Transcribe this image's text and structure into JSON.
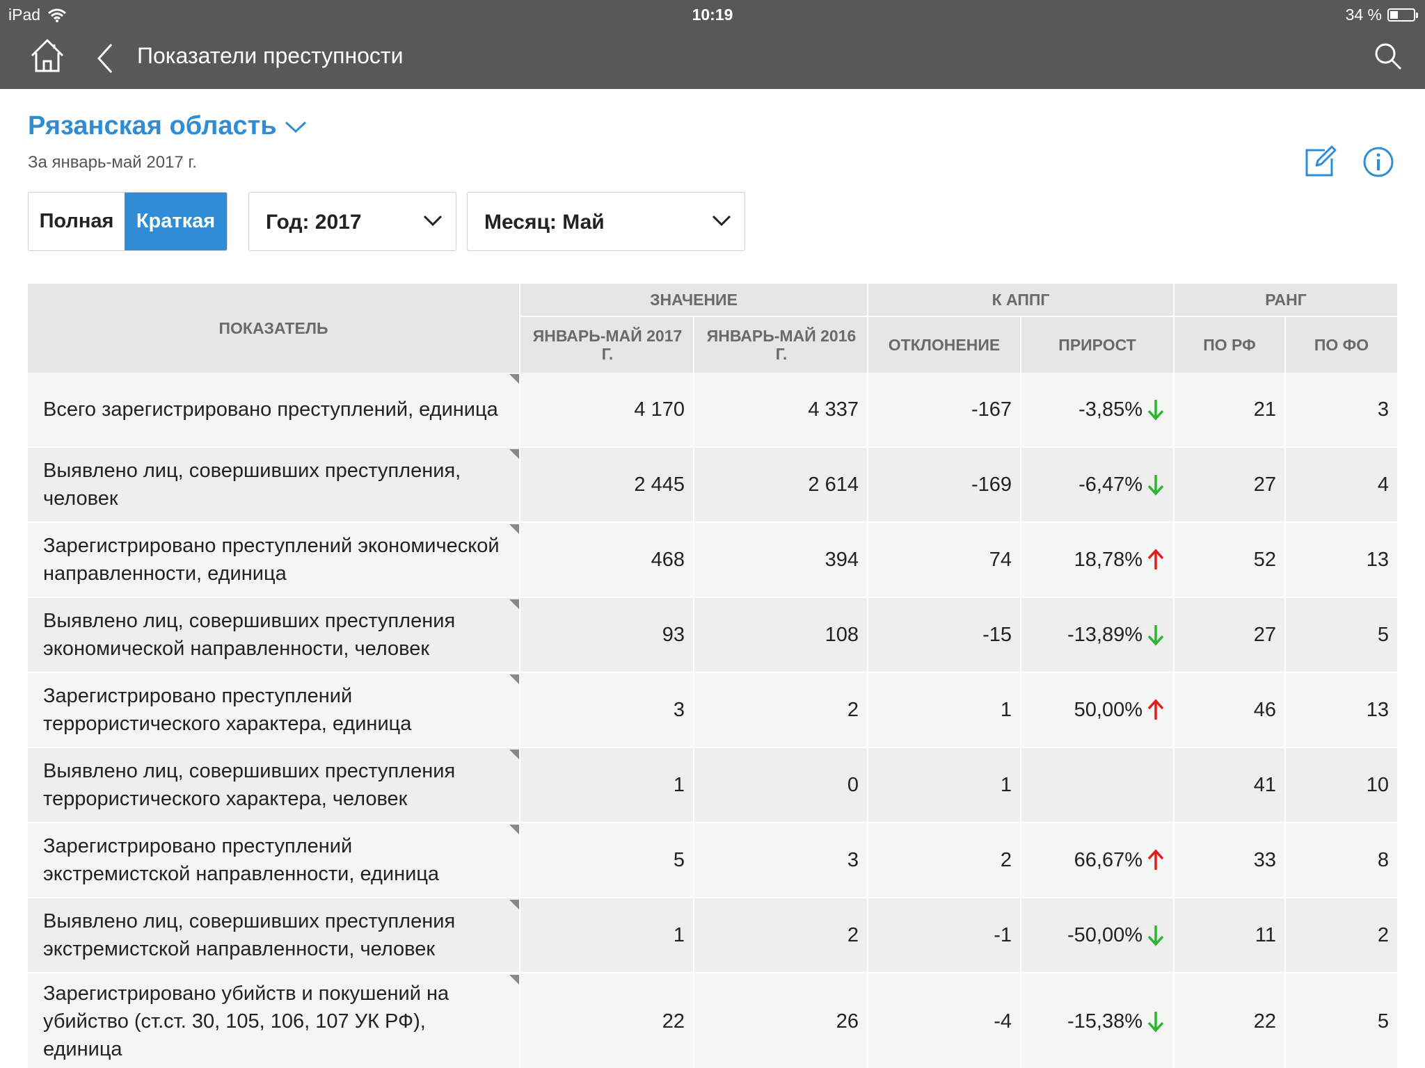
{
  "status": {
    "device": "iPad",
    "time": "10:19",
    "battery": "34 %",
    "battery_level": 0.34
  },
  "nav": {
    "title": "Показатели преступности"
  },
  "region": {
    "name": "Рязанская область",
    "period": "За январь-май 2017 г."
  },
  "view_toggle": {
    "full": "Полная",
    "short": "Краткая",
    "active": "short"
  },
  "filters": {
    "year": "Год: 2017",
    "month": "Месяц: Май"
  },
  "colors": {
    "accent": "#2e8dd6",
    "down": "#2db52d",
    "up": "#e0201b",
    "topbar": "#585858"
  },
  "table": {
    "headers": {
      "indicator": "ПОКАЗАТЕЛЬ",
      "value": "ЗНАЧЕНИЕ",
      "vs_last_year": "К АППГ",
      "rank": "РАНГ",
      "jan_may_2017": "ЯНВАРЬ-МАЙ 2017 Г.",
      "jan_may_2016": "ЯНВАРЬ-МАЙ 2016 Г.",
      "deviation": "ОТКЛОНЕНИЕ",
      "growth": "ПРИРОСТ",
      "rank_rf": "ПО РФ",
      "rank_fo": "ПО ФО"
    },
    "rows": [
      {
        "name": "Всего зарегистрировано преступлений, единица",
        "v2017": "4 170",
        "v2016": "4 337",
        "dev": "-167",
        "growth": "-3,85%",
        "trend": "down",
        "rank_rf": "21",
        "rank_fo": "3"
      },
      {
        "name": "Выявлено лиц, совершивших преступления, человек",
        "v2017": "2 445",
        "v2016": "2 614",
        "dev": "-169",
        "growth": "-6,47%",
        "trend": "down",
        "rank_rf": "27",
        "rank_fo": "4"
      },
      {
        "name": "Зарегистрировано преступлений экономической направленности, единица",
        "v2017": "468",
        "v2016": "394",
        "dev": "74",
        "growth": "18,78%",
        "trend": "up",
        "rank_rf": "52",
        "rank_fo": "13"
      },
      {
        "name": "Выявлено лиц, совершивших преступления экономической направленности, человек",
        "v2017": "93",
        "v2016": "108",
        "dev": "-15",
        "growth": "-13,89%",
        "trend": "down",
        "rank_rf": "27",
        "rank_fo": "5"
      },
      {
        "name": "Зарегистрировано преступлений террористического характера, единица",
        "v2017": "3",
        "v2016": "2",
        "dev": "1",
        "growth": "50,00%",
        "trend": "up",
        "rank_rf": "46",
        "rank_fo": "13"
      },
      {
        "name": "Выявлено лиц, совершивших преступления террористического характера, человек",
        "v2017": "1",
        "v2016": "0",
        "dev": "1",
        "growth": "",
        "trend": "none",
        "rank_rf": "41",
        "rank_fo": "10"
      },
      {
        "name": "Зарегистрировано преступлений экстремистской направленности, единица",
        "v2017": "5",
        "v2016": "3",
        "dev": "2",
        "growth": "66,67%",
        "trend": "up",
        "rank_rf": "33",
        "rank_fo": "8"
      },
      {
        "name": "Выявлено лиц, совершивших преступления экстремистской направленности, человек",
        "v2017": "1",
        "v2016": "2",
        "dev": "-1",
        "growth": "-50,00%",
        "trend": "down",
        "rank_rf": "11",
        "rank_fo": "2"
      },
      {
        "name": "Зарегистрировано убийств и покушений на убийство (ст.ст. 30, 105, 106, 107 УК РФ), единица",
        "v2017": "22",
        "v2016": "26",
        "dev": "-4",
        "growth": "-15,38%",
        "trend": "down",
        "rank_rf": "22",
        "rank_fo": "5"
      }
    ]
  }
}
